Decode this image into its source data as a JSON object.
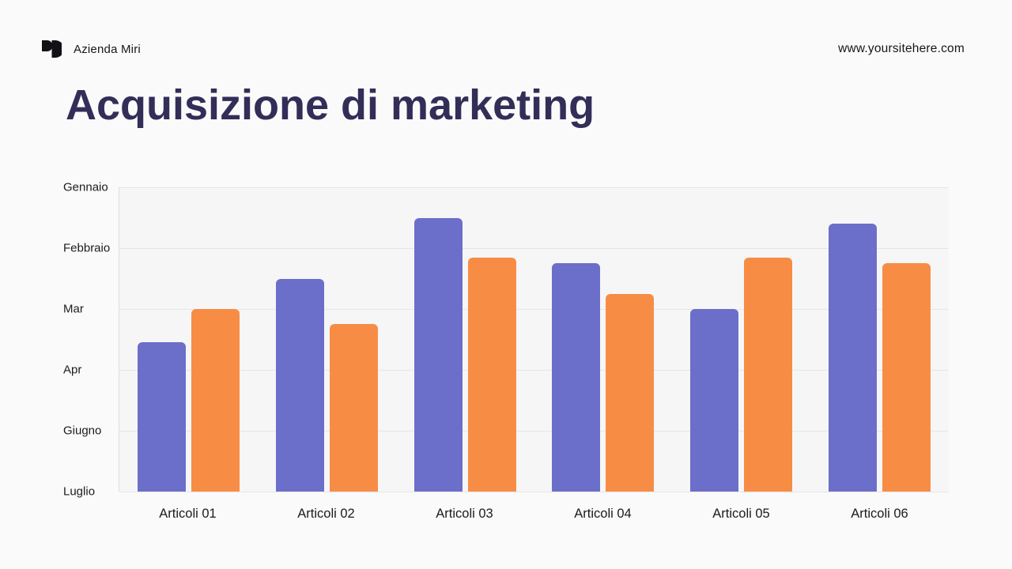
{
  "header": {
    "brand": "Azienda Miri",
    "website": "www.yoursitehere.com"
  },
  "title": {
    "text": "Acquisizione di marketing"
  },
  "chart_data": {
    "type": "bar",
    "title": "Acquisizione di marketing",
    "categories": [
      "Articoli 01",
      "Articoli 02",
      "Articoli 03",
      "Articoli 04",
      "Articoli 05",
      "Articoli 06"
    ],
    "series": [
      {
        "name": "series-purple",
        "color": "#6b6fc9",
        "values": [
          49,
          70,
          90,
          75,
          60,
          88
        ]
      },
      {
        "name": "series-orange",
        "color": "#f78d45",
        "values": [
          60,
          55,
          77,
          65,
          77,
          75
        ]
      }
    ],
    "y_tick_labels": [
      "Gennaio",
      "Febbraio",
      "Mar",
      "Apr",
      "Giugno",
      "Luglio"
    ],
    "y_tick_values": [
      100,
      80,
      60,
      40,
      20,
      0
    ],
    "ylim": [
      0,
      100
    ],
    "grid": true,
    "legend": "none"
  },
  "colors": {
    "background": "#fafafa",
    "title": "#322e58",
    "gridline": "#e6e6e8",
    "bar_purple": "#6b6fc9",
    "bar_orange": "#f78d45"
  }
}
